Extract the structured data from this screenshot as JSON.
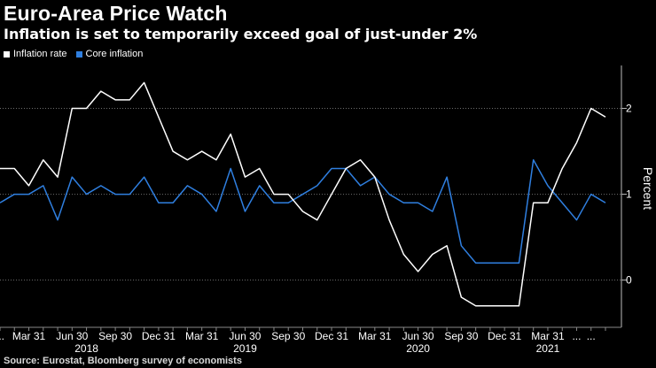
{
  "header": {
    "title": "Euro-Area Price Watch",
    "subtitle": "Inflation is set to temporarily exceed goal of just-under 2%"
  },
  "footer": {
    "source": "Source: Eurostat, Bloomberg survey of economists"
  },
  "colors": {
    "background": "#000000",
    "inflation": "#ffffff",
    "core": "#2f7fe0",
    "grid": "#6e6e6e"
  },
  "chart_data": {
    "type": "line",
    "title": "Euro-Area Price Watch",
    "subtitle": "Inflation is set to temporarily exceed goal of just-under 2%",
    "xlabel": "",
    "ylabel": "Percent",
    "ylim": [
      -0.55,
      2.5
    ],
    "yticks": [
      0,
      1,
      2
    ],
    "grid": true,
    "legend_position": "top-left",
    "x_tick_labels": [
      {
        "index": 0,
        "label": "..."
      },
      {
        "index": 2,
        "label": "Mar 31"
      },
      {
        "index": 5,
        "label": "Jun 30"
      },
      {
        "index": 8,
        "label": "Sep 30"
      },
      {
        "index": 11,
        "label": "Dec 31"
      },
      {
        "index": 14,
        "label": "Mar 31"
      },
      {
        "index": 17,
        "label": "Jun 30"
      },
      {
        "index": 20,
        "label": "Sep 30"
      },
      {
        "index": 23,
        "label": "Dec 31"
      },
      {
        "index": 26,
        "label": "Mar 31"
      },
      {
        "index": 29,
        "label": "Jun 30"
      },
      {
        "index": 32,
        "label": "Sep 30"
      },
      {
        "index": 35,
        "label": "Dec 31"
      },
      {
        "index": 38,
        "label": "Mar 31"
      },
      {
        "index": 40,
        "label": "..."
      },
      {
        "index": 41,
        "label": "..."
      }
    ],
    "year_labels": [
      {
        "index": 6,
        "label": "2018"
      },
      {
        "index": 17,
        "label": "2019"
      },
      {
        "index": 29,
        "label": "2020"
      },
      {
        "index": 38,
        "label": "2021"
      }
    ],
    "series": [
      {
        "name": "Inflation rate",
        "values": [
          1.3,
          1.3,
          1.1,
          1.4,
          1.2,
          2.0,
          2.0,
          2.2,
          2.1,
          2.1,
          2.3,
          1.9,
          1.5,
          1.4,
          1.5,
          1.4,
          1.7,
          1.2,
          1.3,
          1.0,
          1.0,
          0.8,
          0.7,
          1.0,
          1.3,
          1.4,
          1.2,
          0.7,
          0.3,
          0.1,
          0.3,
          0.4,
          -0.2,
          -0.3,
          -0.3,
          -0.3,
          -0.3,
          0.9,
          0.9,
          1.3,
          1.6,
          2.0,
          1.9
        ]
      },
      {
        "name": "Core inflation",
        "values": [
          0.9,
          1.0,
          1.0,
          1.1,
          0.7,
          1.2,
          1.0,
          1.1,
          1.0,
          1.0,
          1.2,
          0.9,
          0.9,
          1.1,
          1.0,
          0.8,
          1.3,
          0.8,
          1.1,
          0.9,
          0.9,
          1.0,
          1.1,
          1.3,
          1.3,
          1.1,
          1.2,
          1.0,
          0.9,
          0.9,
          0.8,
          1.2,
          0.4,
          0.2,
          0.2,
          0.2,
          0.2,
          1.4,
          1.1,
          0.9,
          0.7,
          1.0,
          0.9
        ]
      }
    ]
  }
}
